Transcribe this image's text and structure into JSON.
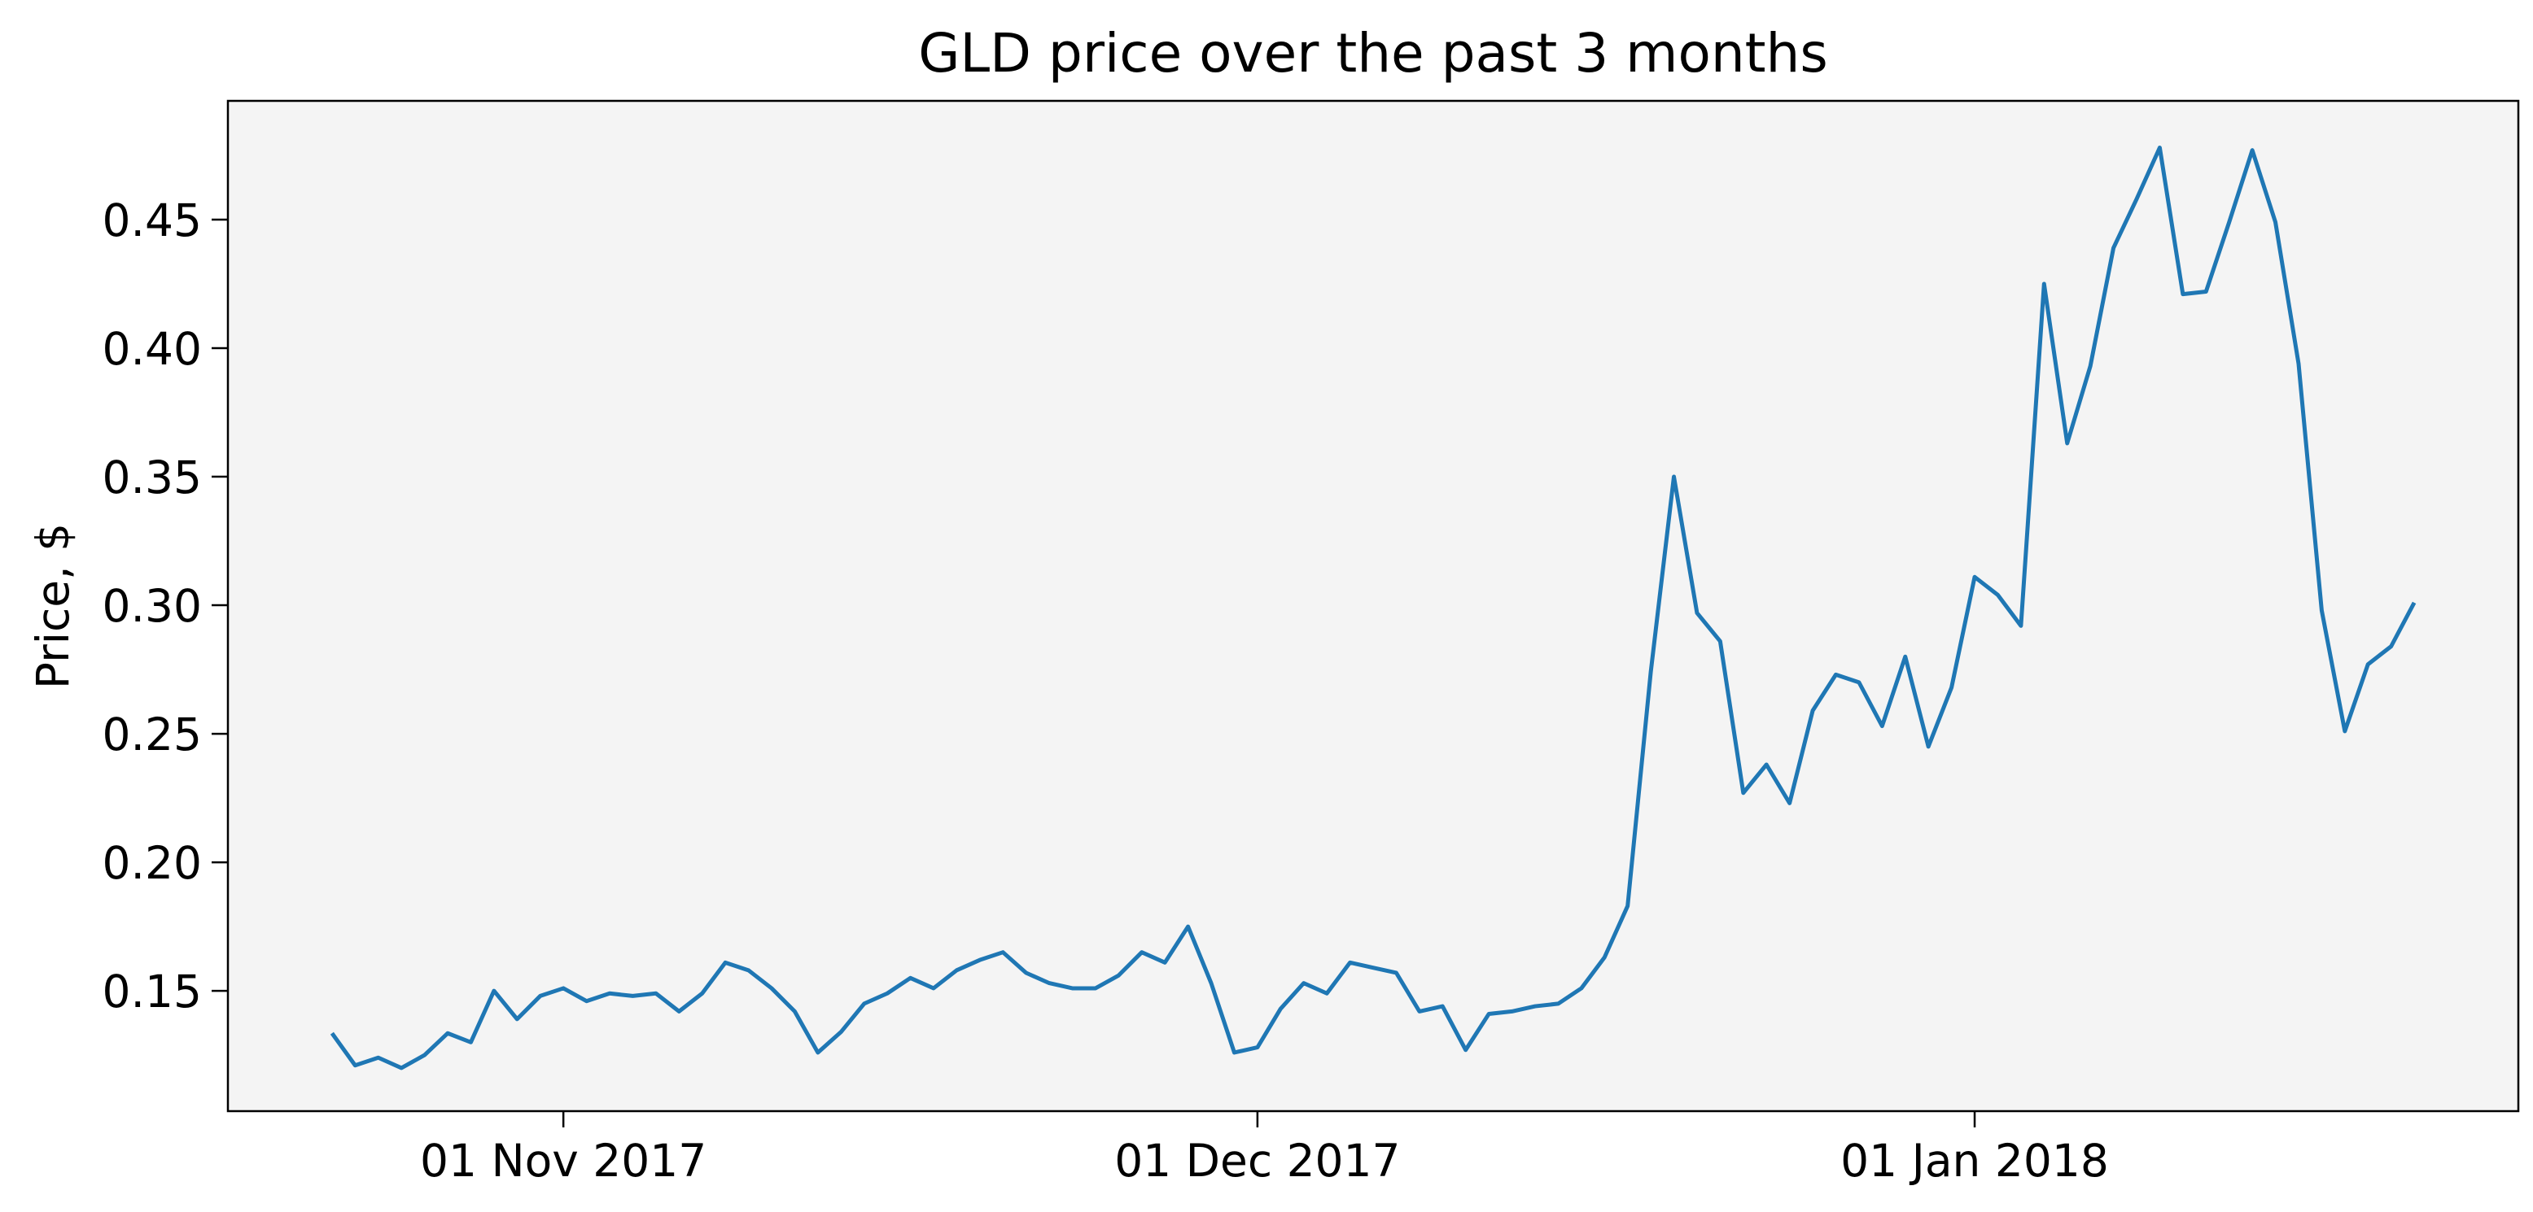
{
  "chart_data": {
    "type": "line",
    "title": "GLD price over the past 3 months",
    "ylabel": "Price, $",
    "x": [
      "2017-10-22",
      "2017-10-23",
      "2017-10-24",
      "2017-10-25",
      "2017-10-26",
      "2017-10-27",
      "2017-10-28",
      "2017-10-29",
      "2017-10-30",
      "2017-10-31",
      "2017-11-01",
      "2017-11-02",
      "2017-11-03",
      "2017-11-04",
      "2017-11-05",
      "2017-11-06",
      "2017-11-07",
      "2017-11-08",
      "2017-11-09",
      "2017-11-10",
      "2017-11-11",
      "2017-11-12",
      "2017-11-13",
      "2017-11-14",
      "2017-11-15",
      "2017-11-16",
      "2017-11-17",
      "2017-11-18",
      "2017-11-19",
      "2017-11-20",
      "2017-11-21",
      "2017-11-22",
      "2017-11-23",
      "2017-11-24",
      "2017-11-25",
      "2017-11-26",
      "2017-11-27",
      "2017-11-28",
      "2017-11-29",
      "2017-11-30",
      "2017-12-01",
      "2017-12-02",
      "2017-12-03",
      "2017-12-04",
      "2017-12-05",
      "2017-12-06",
      "2017-12-07",
      "2017-12-08",
      "2017-12-09",
      "2017-12-10",
      "2017-12-11",
      "2017-12-12",
      "2017-12-13",
      "2017-12-14",
      "2017-12-15",
      "2017-12-16",
      "2017-12-17",
      "2017-12-18",
      "2017-12-19",
      "2017-12-20",
      "2017-12-21",
      "2017-12-22",
      "2017-12-23",
      "2017-12-24",
      "2017-12-25",
      "2017-12-26",
      "2017-12-27",
      "2017-12-28",
      "2017-12-29",
      "2017-12-30",
      "2017-12-31",
      "2018-01-01",
      "2018-01-02",
      "2018-01-03",
      "2018-01-04",
      "2018-01-05",
      "2018-01-06",
      "2018-01-07",
      "2018-01-08",
      "2018-01-09",
      "2018-01-10",
      "2018-01-11",
      "2018-01-12",
      "2018-01-13",
      "2018-01-14",
      "2018-01-15",
      "2018-01-16",
      "2018-01-17",
      "2018-01-18",
      "2018-01-19",
      "2018-01-20"
    ],
    "values": [
      0.1335,
      0.121,
      0.124,
      0.12,
      0.125,
      0.1335,
      0.13,
      0.15,
      0.139,
      0.148,
      0.151,
      0.146,
      0.149,
      0.148,
      0.149,
      0.142,
      0.149,
      0.161,
      0.158,
      0.151,
      0.142,
      0.126,
      0.134,
      0.145,
      0.149,
      0.155,
      0.151,
      0.158,
      0.162,
      0.165,
      0.157,
      0.153,
      0.151,
      0.151,
      0.156,
      0.165,
      0.161,
      0.175,
      0.153,
      0.126,
      0.128,
      0.143,
      0.153,
      0.149,
      0.161,
      0.159,
      0.157,
      0.142,
      0.144,
      0.127,
      0.141,
      0.142,
      0.144,
      0.145,
      0.151,
      0.163,
      0.183,
      0.274,
      0.35,
      0.297,
      0.286,
      0.227,
      0.238,
      0.223,
      0.259,
      0.273,
      0.27,
      0.253,
      0.28,
      0.245,
      0.268,
      0.311,
      0.304,
      0.292,
      0.425,
      0.363,
      0.393,
      0.439,
      0.458,
      0.478,
      0.421,
      0.422,
      0.449,
      0.477,
      0.449,
      0.394,
      0.298,
      0.251,
      0.277,
      0.284,
      0.301
    ],
    "color": "#1f77b4",
    "xlim": [
      "2017-10-17T12:00:00Z",
      "2018-01-24T12:00:00Z"
    ],
    "xticks": [
      {
        "value": "2017-11-01",
        "label": "01 Nov 2017"
      },
      {
        "value": "2017-12-01",
        "label": "01 Dec 2017"
      },
      {
        "value": "2018-01-01",
        "label": "01 Jan 2018"
      }
    ],
    "ylim": [
      0.1032,
      0.4962
    ],
    "yticks": [
      0.15,
      {
        "value": 0.2,
        "label": "0.20"
      },
      0.25,
      {
        "value": 0.3,
        "label": "0.30"
      },
      0.35,
      {
        "value": 0.4,
        "label": "0.40"
      },
      0.45
    ],
    "grid": false
  }
}
